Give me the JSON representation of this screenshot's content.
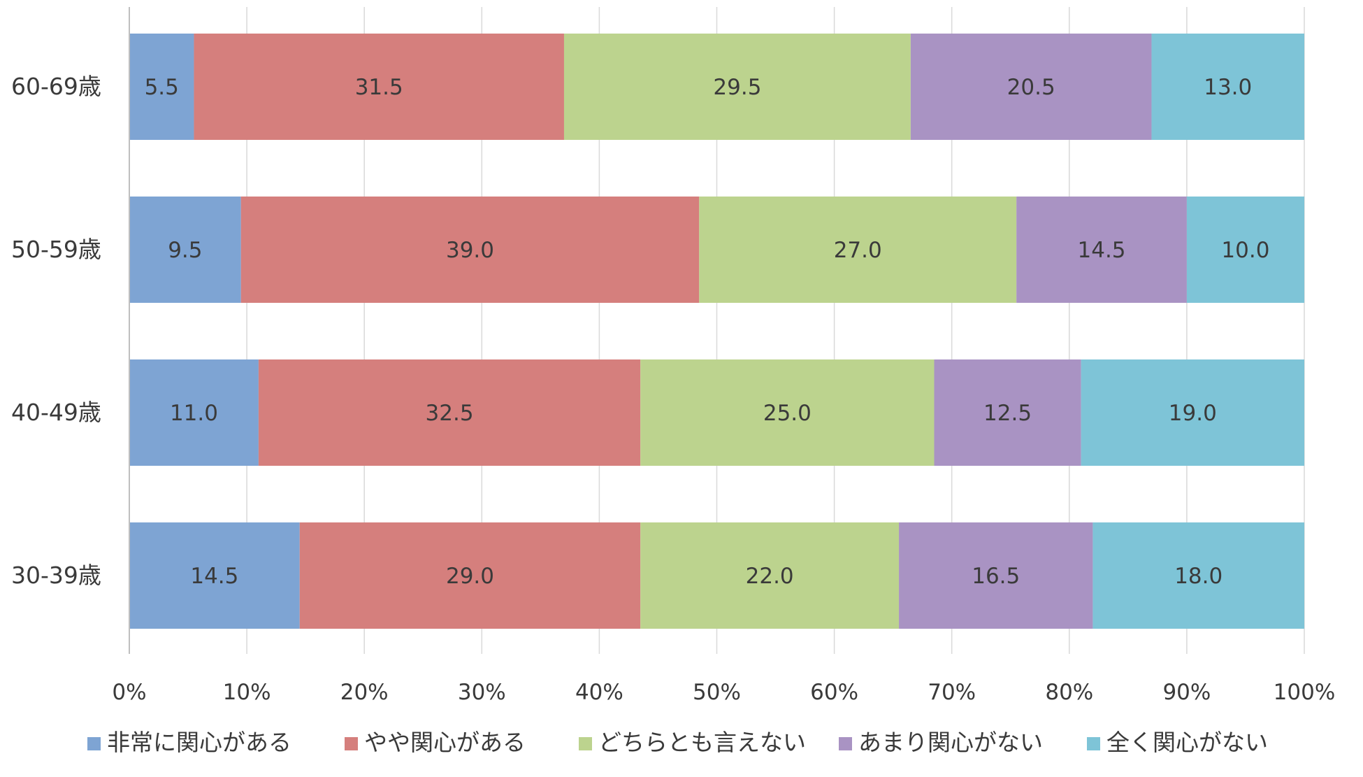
{
  "chart_data": {
    "type": "bar",
    "orientation": "horizontal",
    "stacked": true,
    "percent_stacked": true,
    "categories": [
      "60-69歳",
      "50-59歳",
      "40-49歳",
      "30-39歳"
    ],
    "series": [
      {
        "name": "非常に関心がある",
        "color": "#7ea4d3",
        "values": [
          5.5,
          9.5,
          11.0,
          14.5
        ],
        "labels": [
          "5.5",
          "9.5",
          "11.0",
          "14.5"
        ]
      },
      {
        "name": "やや関心がある",
        "color": "#d57f7d",
        "values": [
          31.5,
          39.0,
          32.5,
          29.0
        ],
        "labels": [
          "31.5",
          "39.0",
          "32.5",
          "29.0"
        ]
      },
      {
        "name": "どちらとも言えない",
        "color": "#bcd38e",
        "values": [
          29.5,
          27.0,
          25.0,
          22.0
        ],
        "labels": [
          "29.5",
          "27.0",
          "25.0",
          "22.0"
        ]
      },
      {
        "name": "あまり関心がない",
        "color": "#a993c3",
        "values": [
          20.5,
          14.5,
          12.5,
          16.5
        ],
        "labels": [
          "20.5",
          "14.5",
          "12.5",
          "16.5"
        ]
      },
      {
        "name": "全く関心がない",
        "color": "#7ec4d7",
        "values": [
          13.0,
          10.0,
          19.0,
          18.0
        ],
        "labels": [
          "13.0",
          "10.0",
          "19.0",
          "18.0"
        ]
      }
    ],
    "xlim": [
      0,
      100
    ],
    "xticks": [
      0,
      10,
      20,
      30,
      40,
      50,
      60,
      70,
      80,
      90,
      100
    ],
    "xtick_labels": [
      "0%",
      "10%",
      "20%",
      "30%",
      "40%",
      "50%",
      "60%",
      "70%",
      "80%",
      "90%",
      "100%"
    ],
    "grid": true,
    "legend_position": "bottom",
    "title": "",
    "xlabel": "",
    "ylabel": ""
  }
}
